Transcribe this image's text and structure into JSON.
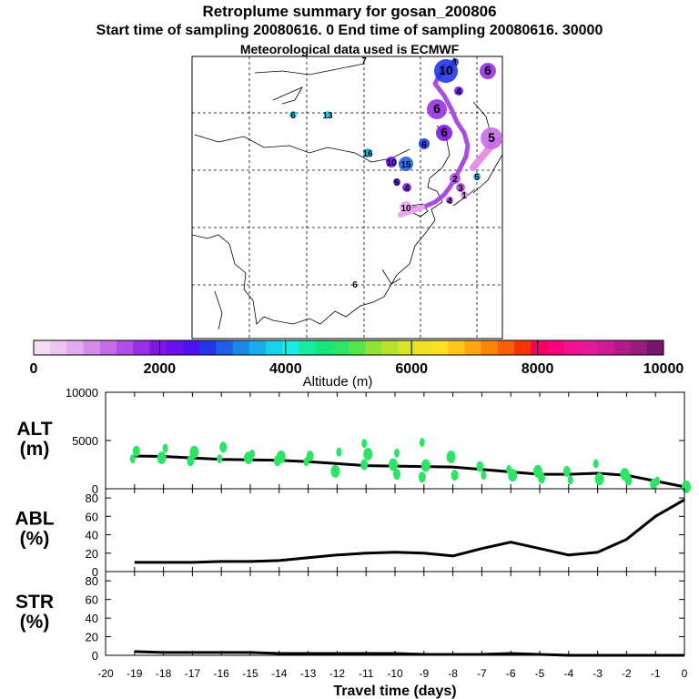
{
  "header": {
    "title": "Retroplume summary for gosan_200806",
    "subtitle": "Start time of sampling 20080616.     0      End time of sampling 20080616. 30000",
    "met_note": "Meteorological data used is ECMWF"
  },
  "colorbar": {
    "label": "Altitude  (m)",
    "tick_labels": [
      "0",
      "2000",
      "4000",
      "6000",
      "8000",
      "10000"
    ],
    "colors": [
      "#f5dcf5",
      "#ecc6f0",
      "#e2a9ee",
      "#d68ae9",
      "#c66de6",
      "#b14ee5",
      "#9930e3",
      "#8216e6",
      "#6a12ec",
      "#4d13ee",
      "#2436e6",
      "#1f5fe6",
      "#1b88e8",
      "#19aeea",
      "#16d2ed",
      "#16ede6",
      "#14ec9f",
      "#18e37c",
      "#2de467",
      "#54e548",
      "#8ee336",
      "#b6e32e",
      "#d7e629",
      "#efe126",
      "#fde023",
      "#fdc51e",
      "#fea615",
      "#fc8408",
      "#f95f06",
      "#f63503",
      "#f8005f",
      "#fa0479",
      "#f5118e",
      "#e6199a",
      "#d01b96",
      "#b21b8c",
      "#961d7c",
      "#76166a"
    ]
  },
  "map": {
    "markers": [
      {
        "label": "1",
        "color": "#2436e6"
      },
      {
        "label": "10",
        "color": "#2436e6"
      },
      {
        "label": "6",
        "color": "#9930e3"
      },
      {
        "label": "4",
        "color": "#6a12ec"
      },
      {
        "label": "6",
        "color": "#9930e3"
      },
      {
        "label": "6",
        "color": "#8216e6"
      },
      {
        "label": "5",
        "color": "#c66de6"
      },
      {
        "label": "2",
        "color": "#b14ee5"
      },
      {
        "label": "3",
        "color": "#b14ee5"
      },
      {
        "label": "1",
        "color": "#d68ae9"
      },
      {
        "label": "16",
        "color": "#19aeea"
      },
      {
        "label": "13",
        "color": "#16d2ed"
      },
      {
        "label": "7",
        "color": "#2de467"
      },
      {
        "label": "15",
        "color": "#1f5fe6"
      },
      {
        "label": "10",
        "color": "#6a12ec"
      },
      {
        "label": "5",
        "color": "#4d13ee"
      },
      {
        "label": "4",
        "color": "#8216e6"
      },
      {
        "label": "10",
        "color": "#e2a9ee"
      },
      {
        "label": "4",
        "color": "#b14ee5"
      },
      {
        "label": "6",
        "color": "#2436e6"
      },
      {
        "label": "5",
        "color": "#19aeea"
      },
      {
        "label": "6",
        "color": "#16d2ed"
      },
      {
        "label": "6",
        "color": "#000000"
      }
    ]
  },
  "chart_data": [
    {
      "type": "scatter",
      "panel": "ALT",
      "ylabel": "ALT\n(m)",
      "ylabel_lines": [
        "ALT",
        "(m)"
      ],
      "ylim": [
        0,
        10000
      ],
      "yticks": [
        "10000",
        "5000",
        "0"
      ],
      "xlim": [
        -20,
        0
      ],
      "series": [
        {
          "name": "mean altitude",
          "x": [
            -19,
            -18,
            -17,
            -16,
            -15,
            -14,
            -13,
            -12,
            -11,
            -10,
            -9,
            -8,
            -7,
            -6,
            -5,
            -4,
            -3,
            -2,
            -1,
            0
          ],
          "y": [
            3400,
            3350,
            3200,
            3050,
            3000,
            2950,
            2800,
            2600,
            2400,
            2350,
            2300,
            2250,
            2000,
            1750,
            1500,
            1500,
            1600,
            1400,
            800,
            200
          ]
        },
        {
          "name": "particle clusters",
          "x": [
            -19,
            -19,
            -18,
            -18,
            -17,
            -17,
            -16,
            -16,
            -15,
            -15,
            -14,
            -14,
            -13,
            -13,
            -12,
            -12,
            -11,
            -11,
            -11,
            -10,
            -10,
            -10,
            -9,
            -9,
            -9,
            -8,
            -8,
            -7,
            -7,
            -6,
            -6,
            -5,
            -5,
            -4,
            -4,
            -3,
            -3,
            -2,
            -2,
            -1,
            -1,
            0
          ],
          "y": [
            3100,
            3900,
            3200,
            4200,
            2900,
            3800,
            3100,
            4300,
            3200,
            3600,
            2900,
            3300,
            2800,
            3400,
            1800,
            3800,
            2500,
            3600,
            4700,
            1500,
            2500,
            3700,
            1200,
            2400,
            4800,
            1400,
            3300,
            1400,
            2300,
            1400,
            2000,
            1100,
            1800,
            900,
            1800,
            1000,
            2600,
            900,
            1500,
            800,
            500,
            200
          ]
        }
      ]
    },
    {
      "type": "line",
      "panel": "ABL",
      "ylabel": "ABL\n(%)",
      "ylabel_lines": [
        "ABL",
        "(%)"
      ],
      "ylim": [
        0,
        90
      ],
      "yticks": [
        "80",
        "60",
        "40",
        "20",
        "0"
      ],
      "xlim": [
        -20,
        0
      ],
      "series": [
        {
          "name": "ABL fraction",
          "x": [
            -19,
            -18,
            -17,
            -16,
            -15,
            -14,
            -13,
            -12,
            -11,
            -10,
            -9,
            -8,
            -7,
            -6,
            -5,
            -4,
            -3,
            -2,
            -1,
            0
          ],
          "y": [
            10,
            10,
            10,
            11,
            11,
            12,
            15,
            18,
            20,
            21,
            20,
            17,
            25,
            32,
            25,
            18,
            21,
            35,
            60,
            78
          ]
        }
      ]
    },
    {
      "type": "line",
      "panel": "STR",
      "ylabel": "STR\n(%)",
      "ylabel_lines": [
        "STR",
        "(%)"
      ],
      "ylim": [
        0,
        90
      ],
      "yticks": [
        "80",
        "60",
        "40",
        "20",
        "0"
      ],
      "xlim": [
        -20,
        0
      ],
      "xlabel": "Travel time (days)",
      "xticks": [
        "-20",
        "-19",
        "-18",
        "-17",
        "-16",
        "-15",
        "-14",
        "-13",
        "-12",
        "-11",
        "-10",
        "-9",
        "-8",
        "-7",
        "-6",
        "-5",
        "-4",
        "-3",
        "-2",
        "-1",
        "0"
      ],
      "series": [
        {
          "name": "STR fraction",
          "x": [
            -19,
            -18,
            -17,
            -16,
            -15,
            -14,
            -13,
            -12,
            -11,
            -10,
            -9,
            -8,
            -7,
            -6,
            -5,
            -4,
            -3,
            -2,
            -1,
            0
          ],
          "y": [
            4,
            3,
            3,
            3,
            3,
            2,
            2,
            2,
            2,
            2,
            1,
            1,
            1,
            2,
            1,
            0,
            0,
            0,
            0,
            0
          ]
        }
      ]
    }
  ]
}
